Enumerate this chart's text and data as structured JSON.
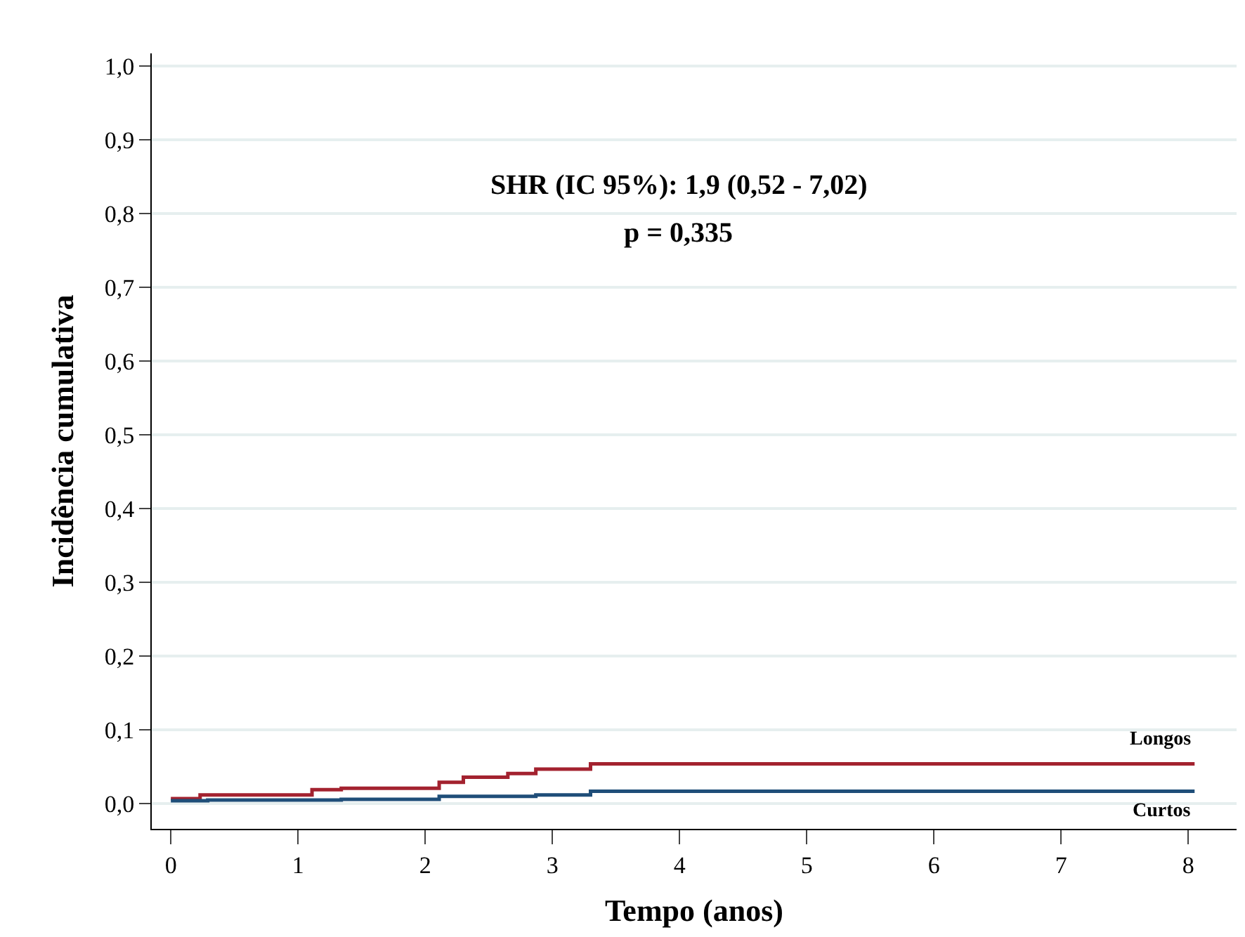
{
  "chart_data": {
    "type": "step",
    "xlabel": "Tempo (anos)",
    "ylabel": "Incidência cumulativa",
    "annotations": [
      "SHR (IC 95%): 1,9 (0,52 - 7,02)",
      "p = 0,335"
    ],
    "series": [
      {
        "name": "Longos",
        "color": "#a3222f",
        "x": [
          0,
          0.23,
          1.11,
          1.34,
          2.11,
          2.3,
          2.65,
          2.87,
          3.3,
          8.05
        ],
        "values": [
          0.007,
          0.012,
          0.019,
          0.021,
          0.029,
          0.036,
          0.041,
          0.047,
          0.054,
          0.054
        ]
      },
      {
        "name": "Curtos",
        "color": "#1f4e79",
        "x": [
          0,
          0.29,
          1.34,
          2.11,
          2.87,
          3.3,
          8.05
        ],
        "values": [
          0.004,
          0.005,
          0.006,
          0.01,
          0.012,
          0.017,
          0.017
        ]
      }
    ],
    "xlim": [
      -0.15,
      8.38
    ],
    "ylim": [
      -0.034,
      1.017
    ],
    "xticks": [
      0,
      1,
      2,
      3,
      4,
      5,
      6,
      7,
      8
    ],
    "yticks": [
      {
        "value": 0,
        "label": "0,0"
      },
      {
        "value": 0.1,
        "label": "0,1"
      },
      {
        "value": 0.2,
        "label": "0,2"
      },
      {
        "value": 0.3,
        "label": "0,3"
      },
      {
        "value": 0.4,
        "label": "0,4"
      },
      {
        "value": 0.5,
        "label": "0,5"
      },
      {
        "value": 0.6,
        "label": "0,6"
      },
      {
        "value": 0.7,
        "label": "0,7"
      },
      {
        "value": 0.8,
        "label": "0,8"
      },
      {
        "value": 0.9,
        "label": "0,9"
      },
      {
        "value": 1.0,
        "label": "1,0"
      }
    ],
    "grid": "y",
    "legend": false,
    "marker": "none",
    "line_style": "solid"
  }
}
